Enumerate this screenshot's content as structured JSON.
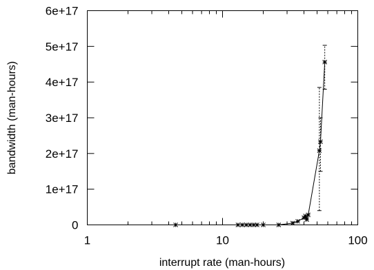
{
  "chart_data": {
    "type": "line",
    "title": "",
    "xlabel": "interrupt rate (man-hours)",
    "ylabel": "bandwidth (man-hours)",
    "x_scale": "log",
    "xlim": [
      1,
      100
    ],
    "ylim": [
      0,
      6e+17
    ],
    "grid": false,
    "legend": "none",
    "x_ticks": [
      {
        "value": 1,
        "label": "1"
      },
      {
        "value": 10,
        "label": "10"
      },
      {
        "value": 100,
        "label": "100"
      }
    ],
    "y_ticks": [
      {
        "value": 0,
        "label": "0"
      },
      {
        "value": 1e+17,
        "label": "1e+17"
      },
      {
        "value": 2e+17,
        "label": "2e+17"
      },
      {
        "value": 3e+17,
        "label": "3e+17"
      },
      {
        "value": 4e+17,
        "label": "4e+17"
      },
      {
        "value": 5e+17,
        "label": "5e+17"
      },
      {
        "value": 6e+17,
        "label": "6e+17"
      }
    ],
    "series": [
      {
        "color": "#000000",
        "marker": "asterisk",
        "points": [
          {
            "x": 4.5,
            "y": 0
          },
          {
            "x": 13,
            "y": 0
          },
          {
            "x": 14,
            "y": 0
          },
          {
            "x": 15,
            "y": 0
          },
          {
            "x": 16,
            "y": 0
          },
          {
            "x": 17,
            "y": 0
          },
          {
            "x": 18,
            "y": 0
          },
          {
            "x": 20,
            "y": 0
          },
          {
            "x": 26,
            "y": 0
          },
          {
            "x": 33,
            "y": 5000000000000000.0
          },
          {
            "x": 36,
            "y": 1e+16
          },
          {
            "x": 40,
            "y": 2e+16
          },
          {
            "x": 41,
            "y": 2.5e+16
          },
          {
            "x": 42,
            "y": 1.5e+16
          },
          {
            "x": 43,
            "y": 2.8e+16
          },
          {
            "x": 52,
            "y": 2.08e+17,
            "y_low": 4e+16,
            "y_high": 3.85e+17
          },
          {
            "x": 53,
            "y": 2.33e+17,
            "y_low": 1.5e+17,
            "y_high": 3e+17
          },
          {
            "x": 57,
            "y": 4.56e+17,
            "y_low": 3.8e+17,
            "y_high": 5.03e+17
          }
        ]
      }
    ]
  }
}
